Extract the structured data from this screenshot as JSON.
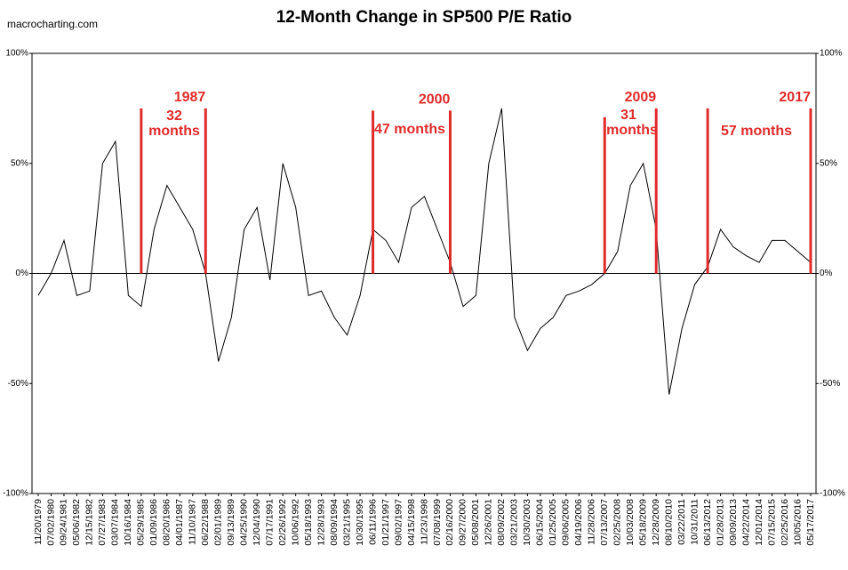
{
  "chart_data": {
    "type": "line",
    "title": "12-Month Change in SP500 P/E Ratio",
    "source": "macrocharting.com",
    "categories": [
      "11/20/1979",
      "07/02/1980",
      "09/24/1981",
      "05/06/1982",
      "12/15/1982",
      "07/27/1983",
      "03/07/1984",
      "10/16/1984",
      "05/29/1985",
      "01/09/1986",
      "08/20/1986",
      "04/01/1987",
      "11/10/1987",
      "06/22/1988",
      "02/01/1989",
      "09/13/1989",
      "04/25/1990",
      "12/04/1990",
      "07/17/1991",
      "02/26/1992",
      "10/06/1992",
      "05/18/1993",
      "12/28/1993",
      "08/09/1994",
      "03/21/1995",
      "10/30/1995",
      "06/11/1996",
      "01/21/1997",
      "09/02/1997",
      "04/15/1998",
      "11/23/1998",
      "07/08/1999",
      "02/16/2000",
      "09/27/2000",
      "05/08/2001",
      "12/26/2001",
      "08/09/2002",
      "03/21/2003",
      "10/30/2003",
      "06/15/2004",
      "01/25/2005",
      "09/06/2005",
      "04/19/2006",
      "11/28/2006",
      "07/13/2007",
      "02/25/2008",
      "10/03/2008",
      "05/18/2009",
      "12/28/2009",
      "08/10/2010",
      "03/22/2011",
      "10/31/2011",
      "06/13/2012",
      "01/28/2013",
      "09/09/2013",
      "04/22/2014",
      "12/01/2014",
      "07/15/2015",
      "02/25/2016",
      "10/05/2016",
      "05/17/2017"
    ],
    "series": [
      {
        "name": "12-Month Change",
        "color": "#000000",
        "values": [
          -10,
          0,
          15,
          -10,
          -8,
          50,
          60,
          -10,
          -15,
          20,
          40,
          30,
          20,
          0,
          -40,
          -20,
          20,
          30,
          -3,
          50,
          30,
          -10,
          -8,
          -20,
          -28,
          -10,
          20,
          15,
          5,
          30,
          35,
          20,
          5,
          -15,
          -10,
          50,
          75,
          -20,
          -35,
          -25,
          -20,
          -10,
          -8,
          -5,
          0,
          10,
          40,
          50,
          20,
          -55,
          -25,
          -5,
          3,
          20,
          12,
          8,
          5,
          15,
          15,
          10,
          5
        ]
      }
    ],
    "ylim": [
      -100,
      100
    ],
    "yticks": [
      {
        "value": -100,
        "label": "-100%"
      },
      {
        "value": -50,
        "label": "-50%"
      },
      {
        "value": 0,
        "label": "0%"
      },
      {
        "value": 50,
        "label": "50%"
      },
      {
        "value": 100,
        "label": "100%"
      }
    ],
    "zero_line": true,
    "annotation_color": "#e02b2b",
    "markers": [
      {
        "date": "05/29/1985",
        "top": 75
      },
      {
        "date": "06/22/1988",
        "top": 75,
        "label": "1987"
      },
      {
        "date": "06/11/1996",
        "top": 74
      },
      {
        "date": "02/16/2000",
        "top": 74,
        "label": "2000"
      },
      {
        "date": "07/13/2007",
        "top": 71
      },
      {
        "date": "12/28/2009",
        "top": 75,
        "label": "2009"
      },
      {
        "date": "06/13/2012",
        "top": 75
      },
      {
        "date": "05/17/2017",
        "top": 75,
        "label": "2017"
      }
    ],
    "spans": [
      "32",
      "months",
      "47 months",
      "31",
      "months",
      "57 months"
    ]
  }
}
